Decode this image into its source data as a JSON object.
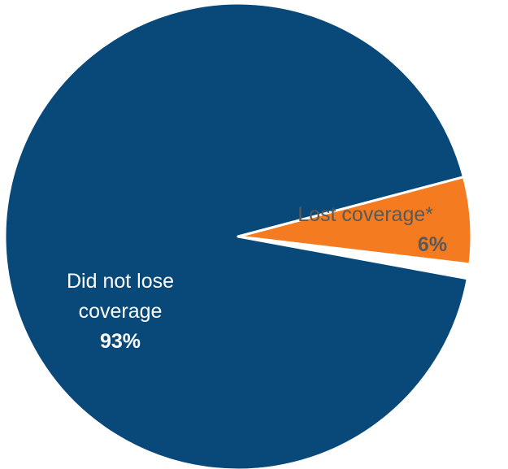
{
  "chart_data": {
    "type": "pie",
    "slices": [
      {
        "label_lines": [
          "Did not lose",
          "coverage"
        ],
        "value": 93,
        "value_label": "93%",
        "color": "#08497a",
        "label_color": "#ffffff"
      },
      {
        "label_lines": [
          "Lost coverage*"
        ],
        "value": 6,
        "value_label": "6%",
        "color": "#f47b20",
        "label_color": "#595959"
      },
      {
        "label_lines": [],
        "value": 1,
        "value_label": "",
        "color": "#fdeee4",
        "label_color": "#595959",
        "exploded": true
      }
    ]
  }
}
